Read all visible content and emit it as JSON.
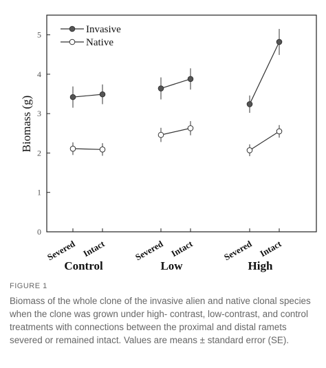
{
  "chart_data": {
    "type": "line",
    "ylabel": "Biomass (g)",
    "ylim": [
      0,
      5.5
    ],
    "yticks": [
      "0",
      "1",
      "2",
      "3",
      "4",
      "5"
    ],
    "groups": [
      {
        "name": "Control",
        "categories": [
          "Severed",
          "Intact"
        ]
      },
      {
        "name": "Low",
        "categories": [
          "Severed",
          "Intact"
        ]
      },
      {
        "name": "High",
        "categories": [
          "Severed",
          "Intact"
        ]
      }
    ],
    "series": [
      {
        "name": "Invasive",
        "marker": "filled",
        "color": "#555555",
        "values": [
          [
            3.42,
            3.49
          ],
          [
            3.64,
            3.88
          ],
          [
            3.24,
            4.82
          ]
        ],
        "se": [
          [
            0.27,
            0.25
          ],
          [
            0.28,
            0.27
          ],
          [
            0.22,
            0.33
          ]
        ]
      },
      {
        "name": "Native",
        "marker": "open",
        "color": "#555555",
        "values": [
          [
            2.11,
            2.09
          ],
          [
            2.46,
            2.63
          ],
          [
            2.07,
            2.55
          ]
        ],
        "se": [
          [
            0.16,
            0.16
          ],
          [
            0.18,
            0.18
          ],
          [
            0.15,
            0.16
          ]
        ]
      }
    ],
    "legend": "top-left",
    "grid": false
  },
  "caption": {
    "label": "FIGURE 1",
    "text": "Biomass of the whole clone of the invasive alien and native clonal species when the clone was grown under high- contrast, low-contrast, and control treatments with connections between the proximal and distal ramets severed or remained intact. Values are means ± standard error (SE)."
  }
}
